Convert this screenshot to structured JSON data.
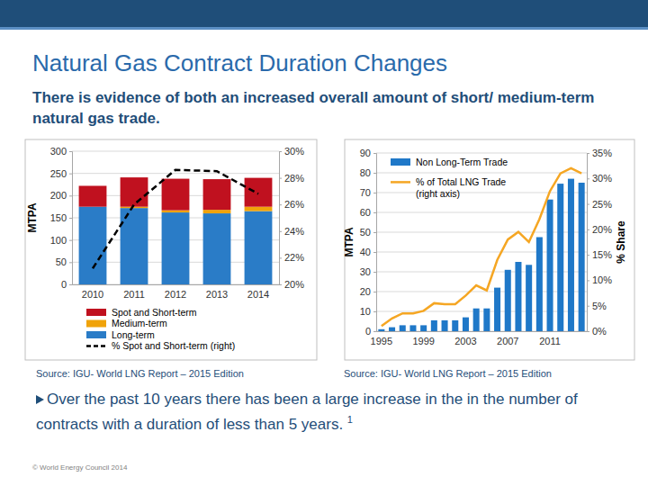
{
  "chart_data": [
    {
      "type": "bar",
      "stacked": true,
      "grid": true,
      "legend": "bottom",
      "ylabel": "MTPA",
      "categories": [
        "2010",
        "2011",
        "2012",
        "2013",
        "2014"
      ],
      "ylim": [
        0,
        300
      ],
      "yticks": [
        0,
        50,
        100,
        150,
        200,
        250,
        300
      ],
      "y2lim": [
        20,
        30
      ],
      "y2ticks": [
        {
          "value": 20,
          "label": "20%"
        },
        {
          "value": 22,
          "label": "22%"
        },
        {
          "value": 24,
          "label": "24%"
        },
        {
          "value": 26,
          "label": "26%"
        },
        {
          "value": 28,
          "label": "28%"
        },
        {
          "value": 30,
          "label": "30%"
        }
      ],
      "series": [
        {
          "name": "Long-term",
          "type": "bar",
          "color": "#2a7cc7",
          "values": [
            175,
            172,
            162,
            160,
            165
          ]
        },
        {
          "name": "Medium-term",
          "type": "bar",
          "color": "#f0a30a",
          "values": [
            0,
            3,
            5,
            8,
            10
          ]
        },
        {
          "name": "Spot and Short-term",
          "type": "bar",
          "color": "#c0111f",
          "values": [
            47,
            66,
            71,
            69,
            65
          ]
        },
        {
          "name": "% Spot and Short-term (right)",
          "type": "line",
          "axis": "y2",
          "color": "#000000",
          "line_style": "dashed",
          "values": [
            21.2,
            26.0,
            28.6,
            28.5,
            26.8
          ]
        }
      ]
    },
    {
      "type": "bar",
      "grid": true,
      "legend": "upper left",
      "ylabel": "MTPA",
      "y2label": "% Share",
      "categories": [
        "1995",
        null,
        null,
        null,
        "1999",
        null,
        null,
        null,
        "2003",
        null,
        null,
        null,
        "2007",
        null,
        null,
        null,
        "2011",
        null,
        null,
        null
      ],
      "ylim": [
        0,
        90
      ],
      "yticks": [
        0,
        10,
        20,
        30,
        40,
        50,
        60,
        70,
        80,
        90
      ],
      "y2lim": [
        0,
        35
      ],
      "y2ticks": [
        {
          "value": 0,
          "label": "0%"
        },
        {
          "value": 5,
          "label": "5%"
        },
        {
          "value": 10,
          "label": "10%"
        },
        {
          "value": 15,
          "label": "15%"
        },
        {
          "value": 20,
          "label": "20%"
        },
        {
          "value": 25,
          "label": "25%"
        },
        {
          "value": 30,
          "label": "30%"
        },
        {
          "value": 35,
          "label": "35%"
        }
      ],
      "series": [
        {
          "name": "Non Long-Term Trade",
          "type": "bar",
          "color": "#1f78c8",
          "values": [
            1,
            2,
            3,
            3,
            3,
            5.5,
            5.5,
            5.5,
            7,
            11.5,
            11.5,
            22,
            31,
            35,
            33.5,
            47.5,
            66.5,
            74.5,
            77,
            75
          ]
        },
        {
          "name": "% of Total LNG Trade (right axis)",
          "type": "line",
          "axis": "y2",
          "color": "#f5a623",
          "values": [
            1,
            2.5,
            3.5,
            3.5,
            4,
            5.5,
            5.3,
            5.3,
            7,
            9,
            8,
            14,
            18,
            19.5,
            17.5,
            22,
            27.5,
            31,
            32,
            31
          ]
        }
      ]
    }
  ],
  "page": {
    "title": "Natural Gas Contract Duration Changes",
    "subtitle": "There is evidence of both an increased overall amount of short/ medium-term natural gas trade.",
    "sources": [
      "Source: IGU- World LNG Report – 2015 Edition",
      "Source: IGU- World LNG Report – 2015 Edition"
    ],
    "bullet": "Over the past 10 years there has been a large increase in the in the number of contracts with a duration of less than 5 years.",
    "bullet_footnote": "1",
    "footer": "© World Energy Council 2014"
  }
}
